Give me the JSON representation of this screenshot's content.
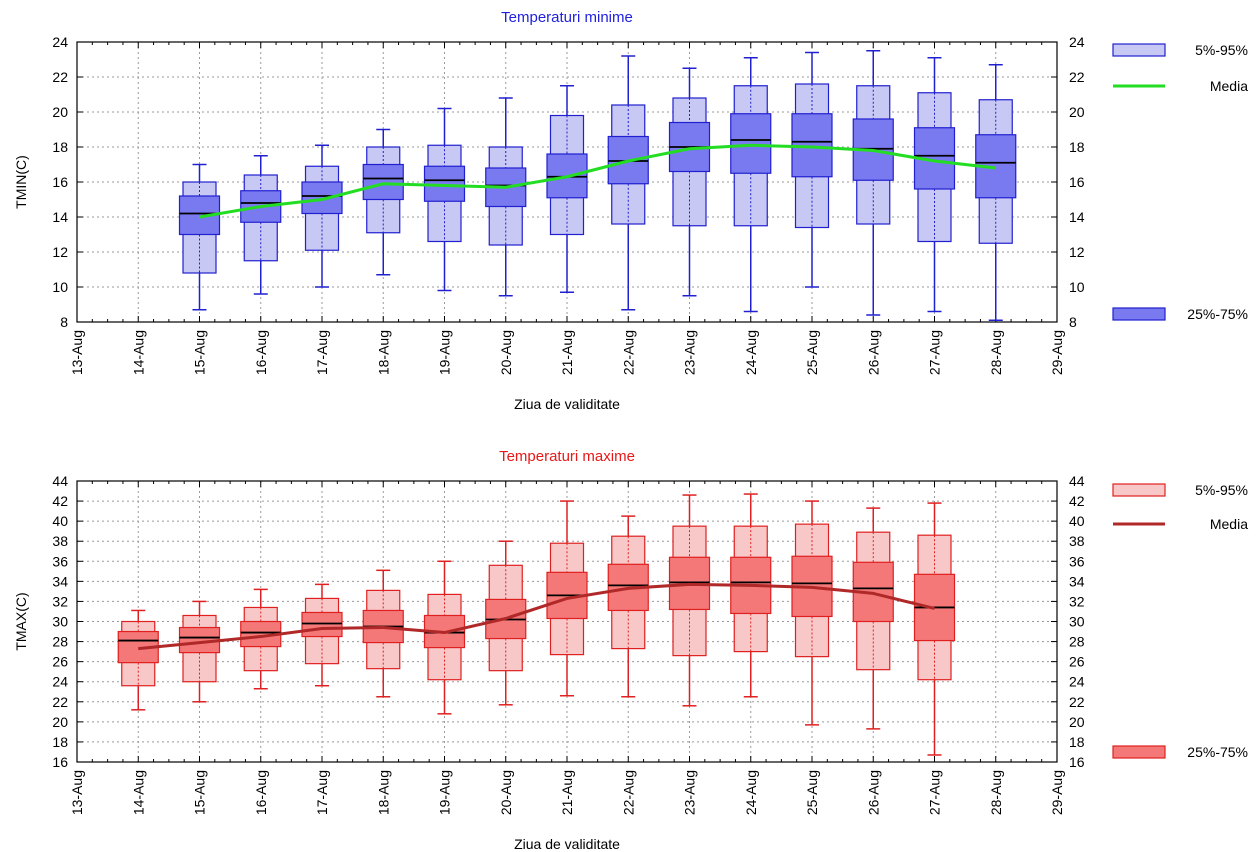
{
  "chart_data": [
    {
      "type": "box",
      "title": "Temperaturi minime",
      "title_color": "#1f1fe0",
      "xlabel": "Ziua de validitate",
      "ylabel": "TMIN(C)",
      "ylim": [
        8,
        24
      ],
      "yticks": [
        8,
        10,
        12,
        14,
        16,
        18,
        20,
        22,
        24
      ],
      "xticklabels": [
        "13-Aug",
        "14-Aug",
        "15-Aug",
        "16-Aug",
        "17-Aug",
        "18-Aug",
        "19-Aug",
        "20-Aug",
        "21-Aug",
        "22-Aug",
        "23-Aug",
        "24-Aug",
        "25-Aug",
        "26-Aug",
        "27-Aug",
        "28-Aug",
        "29-Aug"
      ],
      "grid": true,
      "colors": {
        "box_outer": "#c8c8f4",
        "box_inner": "#7a7af0",
        "stroke": "#2020d0",
        "median": "#000000",
        "mean_line": "#22dd22"
      },
      "legend": {
        "outer": "5%-95%",
        "mean": "Media",
        "inner": "25%-75%"
      },
      "boxes": [
        {
          "x": 2,
          "whisker_low": 8.7,
          "p5": 10.8,
          "q1": 13.0,
          "median": 14.2,
          "q3": 15.2,
          "p95": 16.0,
          "whisker_high": 17.0
        },
        {
          "x": 3,
          "whisker_low": 9.6,
          "p5": 11.5,
          "q1": 13.7,
          "median": 14.8,
          "q3": 15.5,
          "p95": 16.4,
          "whisker_high": 17.5
        },
        {
          "x": 4,
          "whisker_low": 10.0,
          "p5": 12.1,
          "q1": 14.2,
          "median": 15.2,
          "q3": 16.0,
          "p95": 16.9,
          "whisker_high": 18.1
        },
        {
          "x": 5,
          "whisker_low": 10.7,
          "p5": 13.1,
          "q1": 15.0,
          "median": 16.2,
          "q3": 17.0,
          "p95": 18.0,
          "whisker_high": 19.0
        },
        {
          "x": 6,
          "whisker_low": 9.8,
          "p5": 12.6,
          "q1": 14.9,
          "median": 16.1,
          "q3": 16.9,
          "p95": 18.1,
          "whisker_high": 20.2
        },
        {
          "x": 7,
          "whisker_low": 9.5,
          "p5": 12.4,
          "q1": 14.6,
          "median": 15.8,
          "q3": 16.8,
          "p95": 18.0,
          "whisker_high": 20.8
        },
        {
          "x": 8,
          "whisker_low": 9.7,
          "p5": 13.0,
          "q1": 15.1,
          "median": 16.3,
          "q3": 17.6,
          "p95": 19.8,
          "whisker_high": 21.5
        },
        {
          "x": 9,
          "whisker_low": 8.7,
          "p5": 13.6,
          "q1": 15.9,
          "median": 17.2,
          "q3": 18.6,
          "p95": 20.4,
          "whisker_high": 23.2
        },
        {
          "x": 10,
          "whisker_low": 9.5,
          "p5": 13.5,
          "q1": 16.6,
          "median": 18.0,
          "q3": 19.4,
          "p95": 20.8,
          "whisker_high": 22.5
        },
        {
          "x": 11,
          "whisker_low": 8.6,
          "p5": 13.5,
          "q1": 16.5,
          "median": 18.4,
          "q3": 19.9,
          "p95": 21.5,
          "whisker_high": 23.1
        },
        {
          "x": 12,
          "whisker_low": 10.0,
          "p5": 13.4,
          "q1": 16.3,
          "median": 18.3,
          "q3": 19.9,
          "p95": 21.6,
          "whisker_high": 23.4
        },
        {
          "x": 13,
          "whisker_low": 8.4,
          "p5": 13.6,
          "q1": 16.1,
          "median": 17.9,
          "q3": 19.6,
          "p95": 21.5,
          "whisker_high": 23.5
        },
        {
          "x": 14,
          "whisker_low": 8.6,
          "p5": 12.6,
          "q1": 15.6,
          "median": 17.5,
          "q3": 19.1,
          "p95": 21.1,
          "whisker_high": 23.1
        },
        {
          "x": 15,
          "whisker_low": 8.1,
          "p5": 12.5,
          "q1": 15.1,
          "median": 17.1,
          "q3": 18.7,
          "p95": 20.7,
          "whisker_high": 22.7
        }
      ],
      "mean": {
        "x": [
          2,
          3,
          4,
          5,
          6,
          7,
          8,
          9,
          10,
          11,
          12,
          13,
          14,
          15
        ],
        "y": [
          14.0,
          14.6,
          15.0,
          15.9,
          15.8,
          15.7,
          16.3,
          17.2,
          17.9,
          18.1,
          18.0,
          17.8,
          17.2,
          16.8
        ]
      }
    },
    {
      "type": "box",
      "title": "Temperaturi maxime",
      "title_color": "#e81818",
      "xlabel": "Ziua de validitate",
      "ylabel": "TMAX(C)",
      "ylim": [
        16,
        44
      ],
      "yticks": [
        16,
        18,
        20,
        22,
        24,
        26,
        28,
        30,
        32,
        34,
        36,
        38,
        40,
        42,
        44
      ],
      "xticklabels": [
        "13-Aug",
        "14-Aug",
        "15-Aug",
        "16-Aug",
        "17-Aug",
        "18-Aug",
        "19-Aug",
        "20-Aug",
        "21-Aug",
        "22-Aug",
        "23-Aug",
        "24-Aug",
        "25-Aug",
        "26-Aug",
        "27-Aug",
        "28-Aug",
        "29-Aug"
      ],
      "grid": true,
      "colors": {
        "box_outer": "#f8c8c8",
        "box_inner": "#f47878",
        "stroke": "#e02020",
        "median": "#000000",
        "mean_line": "#b02828"
      },
      "legend": {
        "outer": "5%-95%",
        "mean": "Media",
        "inner": "25%-75%"
      },
      "boxes": [
        {
          "x": 1,
          "whisker_low": 21.2,
          "p5": 23.6,
          "q1": 25.9,
          "median": 28.1,
          "q3": 29.0,
          "p95": 30.0,
          "whisker_high": 31.1
        },
        {
          "x": 2,
          "whisker_low": 22.0,
          "p5": 24.0,
          "q1": 26.9,
          "median": 28.4,
          "q3": 29.4,
          "p95": 30.6,
          "whisker_high": 32.0
        },
        {
          "x": 3,
          "whisker_low": 23.3,
          "p5": 25.1,
          "q1": 27.5,
          "median": 28.9,
          "q3": 30.0,
          "p95": 31.4,
          "whisker_high": 33.2
        },
        {
          "x": 4,
          "whisker_low": 23.6,
          "p5": 25.8,
          "q1": 28.5,
          "median": 29.8,
          "q3": 30.9,
          "p95": 32.3,
          "whisker_high": 33.7
        },
        {
          "x": 5,
          "whisker_low": 22.5,
          "p5": 25.3,
          "q1": 27.9,
          "median": 29.5,
          "q3": 31.1,
          "p95": 33.1,
          "whisker_high": 35.1
        },
        {
          "x": 6,
          "whisker_low": 20.8,
          "p5": 24.2,
          "q1": 27.4,
          "median": 28.9,
          "q3": 30.6,
          "p95": 32.7,
          "whisker_high": 36.0
        },
        {
          "x": 7,
          "whisker_low": 21.7,
          "p5": 25.1,
          "q1": 28.3,
          "median": 30.2,
          "q3": 32.2,
          "p95": 35.6,
          "whisker_high": 38.0
        },
        {
          "x": 8,
          "whisker_low": 22.6,
          "p5": 26.7,
          "q1": 30.3,
          "median": 32.6,
          "q3": 34.9,
          "p95": 37.8,
          "whisker_high": 42.0
        },
        {
          "x": 9,
          "whisker_low": 22.5,
          "p5": 27.3,
          "q1": 31.1,
          "median": 33.6,
          "q3": 35.7,
          "p95": 38.5,
          "whisker_high": 40.5
        },
        {
          "x": 10,
          "whisker_low": 21.6,
          "p5": 26.6,
          "q1": 31.2,
          "median": 33.9,
          "q3": 36.4,
          "p95": 39.5,
          "whisker_high": 42.6
        },
        {
          "x": 11,
          "whisker_low": 22.5,
          "p5": 27.0,
          "q1": 30.8,
          "median": 33.9,
          "q3": 36.4,
          "p95": 39.5,
          "whisker_high": 42.7
        },
        {
          "x": 12,
          "whisker_low": 19.7,
          "p5": 26.5,
          "q1": 30.5,
          "median": 33.8,
          "q3": 36.5,
          "p95": 39.7,
          "whisker_high": 42.0
        },
        {
          "x": 13,
          "whisker_low": 19.3,
          "p5": 25.2,
          "q1": 30.0,
          "median": 33.3,
          "q3": 35.9,
          "p95": 38.9,
          "whisker_high": 41.3
        },
        {
          "x": 14,
          "whisker_low": 16.7,
          "p5": 24.2,
          "q1": 28.1,
          "median": 31.4,
          "q3": 34.7,
          "p95": 38.6,
          "whisker_high": 41.8
        }
      ],
      "mean": {
        "x": [
          1,
          2,
          3,
          4,
          5,
          6,
          7,
          8,
          9,
          10,
          11,
          12,
          13,
          14
        ],
        "y": [
          27.3,
          27.9,
          28.5,
          29.3,
          29.4,
          28.9,
          30.3,
          32.3,
          33.3,
          33.7,
          33.6,
          33.4,
          32.8,
          31.3
        ]
      }
    }
  ]
}
